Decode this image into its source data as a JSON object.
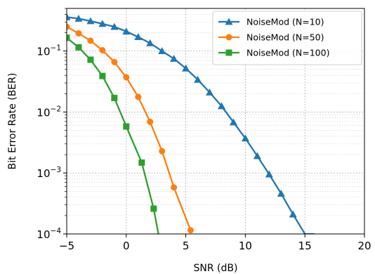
{
  "chart_data": {
    "type": "line",
    "xlabel": "SNR (dB)",
    "ylabel": "Bit Error Rate (BER)",
    "xlim": [
      -5,
      20
    ],
    "ylim": [
      0.0001,
      0.5
    ],
    "y_scale": "log",
    "x_ticks": [
      -5,
      0,
      5,
      10,
      15,
      20
    ],
    "x_tick_labels": [
      "−5",
      "0",
      "5",
      "10",
      "15",
      "20"
    ],
    "y_ticks": [
      0.1,
      0.01,
      0.001,
      0.0001
    ],
    "y_tick_labels": [
      {
        "base": "10",
        "exp": "−1"
      },
      {
        "base": "10",
        "exp": "−2"
      },
      {
        "base": "10",
        "exp": "−3"
      },
      {
        "base": "10",
        "exp": "−4"
      }
    ],
    "grid": "both",
    "legend_position": "top-right",
    "series": [
      {
        "name": "NoiseMod (N=10)",
        "color": "#1f77b4",
        "marker": "triangle",
        "x": [
          -5,
          -4,
          -3,
          -2,
          -1,
          0,
          1,
          2,
          3,
          4,
          5,
          6,
          7,
          8,
          9,
          10,
          11,
          12,
          13,
          14,
          15,
          15.8
        ],
        "y": [
          0.36,
          0.34,
          0.31,
          0.28,
          0.25,
          0.21,
          0.17,
          0.135,
          0.1,
          0.075,
          0.052,
          0.034,
          0.021,
          0.0125,
          0.0068,
          0.0037,
          0.0019,
          0.00095,
          0.00046,
          0.00021,
          0.0001,
          0.0001
        ]
      },
      {
        "name": "NoiseMod (N=50)",
        "color": "#ff7f0e",
        "marker": "circle",
        "x": [
          -5,
          -4,
          -3,
          -2,
          -1,
          0,
          1,
          2,
          3,
          4,
          5.4
        ],
        "y": [
          0.25,
          0.195,
          0.148,
          0.103,
          0.066,
          0.037,
          0.0177,
          0.0069,
          0.00228,
          0.00058,
          0.000115
        ]
      },
      {
        "name": "NoiseMod (N=100)",
        "color": "#2ca02c",
        "marker": "square",
        "x": [
          -5,
          -4,
          -3,
          -2,
          -1,
          0,
          1.3,
          2.3,
          2.7
        ],
        "y": [
          0.165,
          0.115,
          0.072,
          0.039,
          0.017,
          0.0058,
          0.00148,
          0.00026,
          0.0001
        ]
      }
    ]
  }
}
